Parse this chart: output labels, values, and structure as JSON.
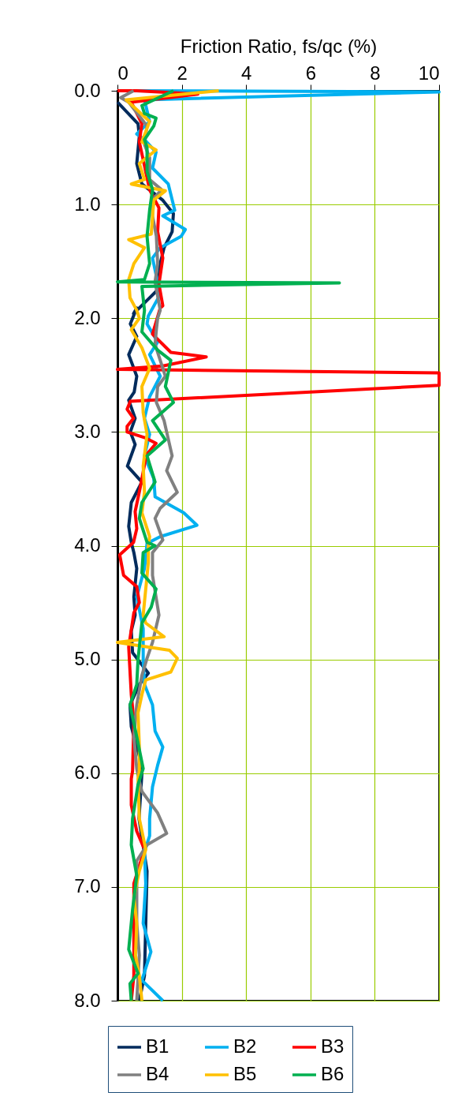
{
  "chart_data": {
    "type": "line",
    "xlabel": "Friction Ratio, fs/qc (%)",
    "xlim": [
      0,
      10
    ],
    "xticks": [
      0,
      2,
      4,
      6,
      8,
      10
    ],
    "ylim": [
      8,
      0
    ],
    "yticks": [
      {
        "value": 0,
        "label": "0.0"
      },
      {
        "value": 1,
        "label": "1.0"
      },
      {
        "value": 2,
        "label": "2.0"
      },
      {
        "value": 3,
        "label": "3.0"
      },
      {
        "value": 4,
        "label": "4.0"
      },
      {
        "value": 5,
        "label": "5.0"
      },
      {
        "value": 6,
        "label": "6.0"
      },
      {
        "value": 7,
        "label": "7.0"
      },
      {
        "value": 8,
        "label": "8.0"
      }
    ],
    "grid": true,
    "legend": "bottom",
    "line_style": "solid",
    "series": [
      {
        "name": "B1",
        "color": "#002b5c",
        "x": [
          0,
          0.64,
          0.68,
          0.6,
          0.76,
          1.4,
          1.74,
          1.7,
          1.45,
          1.33,
          1.25,
          1.0,
          0.5,
          0.6,
          0.4,
          0.6,
          0.35,
          0.6,
          0.52,
          0.35,
          0.55,
          0.4,
          0.55,
          0.31,
          0.76,
          0.43,
          0.35,
          0.43,
          0.51,
          0.6,
          0.51,
          0.55,
          0.43,
          0.47,
          0.96,
          0.68,
          0.39,
          0.43,
          0.6,
          0.76,
          0.76,
          0.67,
          0.92,
          0.88,
          0.84,
          0.68
        ],
        "values": [
          0.1,
          0.29,
          0.4,
          0.64,
          0.82,
          0.96,
          1.08,
          1.24,
          1.38,
          1.52,
          1.75,
          1.82,
          1.96,
          1.91,
          2.05,
          2.16,
          2.32,
          2.51,
          2.65,
          2.72,
          2.88,
          3.0,
          3.11,
          3.3,
          3.44,
          3.62,
          3.83,
          3.97,
          4.06,
          4.2,
          4.45,
          4.61,
          4.75,
          4.94,
          5.12,
          5.22,
          5.4,
          5.59,
          5.77,
          5.93,
          6.0,
          6.4,
          6.86,
          7.32,
          7.78,
          8.0
        ]
      },
      {
        "name": "B2",
        "color": "#00b0f0",
        "x": [
          0.2,
          10,
          0.84,
          1.0,
          0.6,
          0.84,
          1.2,
          1.09,
          1.58,
          1.78,
          1.41,
          2.11,
          1.98,
          1.33,
          1.09,
          1.33,
          0.96,
          0.92,
          1.25,
          1.0,
          1.33,
          1.0,
          0.84,
          1.0,
          0.84,
          1.13,
          1.17,
          2.06,
          2.47,
          1.33,
          0.92,
          0.84,
          0.6,
          0.8,
          0.8,
          0.84,
          1.09,
          1.17,
          1.41,
          1.25,
          1.09,
          1.0,
          1.0,
          0.84,
          0.88,
          0.8,
          1.04,
          0.76,
          1.41
        ],
        "values": [
          0.0,
          0.01,
          0.08,
          0.27,
          0.38,
          0.43,
          0.54,
          0.68,
          0.82,
          1.05,
          1.1,
          1.22,
          1.28,
          1.38,
          1.47,
          1.79,
          1.98,
          2.05,
          2.21,
          2.32,
          2.51,
          2.69,
          2.88,
          3.02,
          3.21,
          3.41,
          3.57,
          3.71,
          3.82,
          3.92,
          3.98,
          4.2,
          4.45,
          4.73,
          5.0,
          5.22,
          5.4,
          5.63,
          5.77,
          5.93,
          6.12,
          6.4,
          6.55,
          6.69,
          6.97,
          7.32,
          7.57,
          7.82,
          8.0
        ]
      },
      {
        "name": "B3",
        "color": "#ff0000",
        "x": [
          0,
          0.6,
          2.5,
          0.43,
          0.76,
          0.68,
          0.84,
          1.0,
          1.29,
          1.25,
          1.41,
          1.29,
          1.41,
          1.33,
          1.09,
          1.66,
          2.76,
          1.41,
          0,
          10,
          10,
          0.4,
          0.3,
          0.5,
          0.3,
          0.3,
          0.85,
          1.2,
          0.9,
          0.8,
          0.7,
          0.55,
          0.6,
          0.5,
          0.07,
          0.19,
          0.6,
          0.68,
          0.51,
          0.35,
          0.43,
          0.51,
          0.47,
          0.43,
          0.43,
          0.6,
          0.84,
          0.51,
          0.51,
          0.51,
          0.43
        ],
        "values": [
          0.0,
          0.0,
          0.03,
          0.1,
          0.29,
          0.45,
          0.66,
          0.87,
          1.03,
          1.24,
          1.47,
          1.7,
          1.89,
          1.91,
          2.14,
          2.3,
          2.34,
          2.42,
          2.45,
          2.48,
          2.59,
          2.73,
          2.8,
          2.88,
          2.95,
          3.0,
          3.05,
          3.1,
          3.2,
          3.35,
          3.5,
          3.7,
          3.85,
          3.97,
          4.08,
          4.26,
          4.36,
          4.5,
          4.59,
          4.89,
          5.31,
          5.54,
          5.98,
          6.05,
          6.28,
          6.51,
          6.67,
          6.97,
          7.32,
          7.78,
          8.0
        ]
      },
      {
        "name": "B4",
        "color": "#808080",
        "x": [
          0.5,
          0.1,
          0.35,
          0.92,
          0.84,
          1.0,
          1.0,
          1.37,
          1.09,
          1.09,
          1.21,
          1.25,
          1.17,
          1.33,
          1.25,
          1.21,
          1.17,
          1.41,
          1.49,
          1.25,
          1.21,
          1.45,
          1.53,
          1.7,
          1.53,
          1.86,
          1.33,
          1.17,
          1.41,
          1.09,
          1.09,
          1.25,
          1.29,
          1.09,
          0.92,
          0.76,
          0.6,
          0.51,
          0.6,
          0.68,
          0.76,
          1.25,
          1.53,
          0.92,
          0.6,
          0.6,
          0.68,
          0.6
        ],
        "values": [
          0.0,
          0.06,
          0.1,
          0.31,
          0.47,
          0.59,
          0.78,
          0.87,
          0.96,
          1.1,
          1.28,
          1.52,
          1.68,
          1.93,
          2.0,
          2.1,
          2.23,
          2.44,
          2.51,
          2.6,
          2.74,
          2.9,
          3.0,
          3.21,
          3.34,
          3.53,
          3.67,
          3.76,
          3.95,
          4.06,
          4.26,
          4.54,
          4.61,
          4.85,
          4.99,
          5.14,
          5.4,
          5.68,
          5.96,
          6.07,
          6.16,
          6.35,
          6.53,
          6.63,
          6.77,
          7.32,
          7.6,
          8.0
        ]
      },
      {
        "name": "B5",
        "color": "#ffc000",
        "x": [
          3.15,
          0.27,
          1.0,
          0.76,
          1.2,
          0.68,
          0.84,
          0.43,
          1.49,
          1.13,
          1.05,
          0.35,
          0.84,
          0.51,
          0.35,
          0.39,
          0.6,
          0.68,
          0.43,
          0.76,
          1.0,
          0.76,
          0.8,
          0.92,
          0.8,
          0.84,
          0.76,
          1.0,
          0.96,
          0.96,
          0.8,
          0.88,
          1.45,
          0,
          1.62,
          1.86,
          1.66,
          0.88,
          0.76,
          0.64,
          0.68,
          0.68,
          0.64,
          0.68,
          0.88,
          0.68,
          0.51,
          0.6,
          0.56,
          0.68,
          0.76
        ],
        "values": [
          0.0,
          0.08,
          0.27,
          0.45,
          0.52,
          0.64,
          0.78,
          0.82,
          0.88,
          0.96,
          1.26,
          1.31,
          1.38,
          1.52,
          1.66,
          1.82,
          1.93,
          2.0,
          2.1,
          2.26,
          2.44,
          2.6,
          2.83,
          3.02,
          3.3,
          3.53,
          3.71,
          3.92,
          4.0,
          4.15,
          4.61,
          4.68,
          4.8,
          4.85,
          4.92,
          4.99,
          5.11,
          5.18,
          5.31,
          5.47,
          5.77,
          5.98,
          6.05,
          6.4,
          6.67,
          6.86,
          7.09,
          7.32,
          7.6,
          7.78,
          8.0
        ]
      },
      {
        "name": "B6",
        "color": "#00b050",
        "x": [
          1.74,
          0.76,
          0.84,
          1.2,
          1.13,
          0.84,
          0.92,
          0.92,
          1.09,
          1.0,
          0.92,
          1.0,
          0.84,
          0,
          6.9,
          0.76,
          0.84,
          0.76,
          1.25,
          1.66,
          1.49,
          1.74,
          1.09,
          1.49,
          0.92,
          1.17,
          0.76,
          0.68,
          0.92,
          1.17,
          0.8,
          0.76,
          1.2,
          1.05,
          0.76,
          0.64,
          0.6,
          0.39,
          0.6,
          0.8,
          0.64,
          0.47,
          0.43,
          0.6,
          0.47,
          0.35,
          0.64,
          0.39,
          0.43
        ],
        "values": [
          0.0,
          0.13,
          0.2,
          0.24,
          0.31,
          0.43,
          0.5,
          0.71,
          0.87,
          1.05,
          1.28,
          1.52,
          1.66,
          1.68,
          1.69,
          1.72,
          1.93,
          2.12,
          2.28,
          2.37,
          2.6,
          2.74,
          2.9,
          3.07,
          3.21,
          3.44,
          3.62,
          3.76,
          3.97,
          4.0,
          4.06,
          4.24,
          4.38,
          4.54,
          4.68,
          5.0,
          5.22,
          5.4,
          5.68,
          5.96,
          6.1,
          6.4,
          6.63,
          6.9,
          7.2,
          7.55,
          7.76,
          7.85,
          8.0
        ]
      }
    ]
  }
}
